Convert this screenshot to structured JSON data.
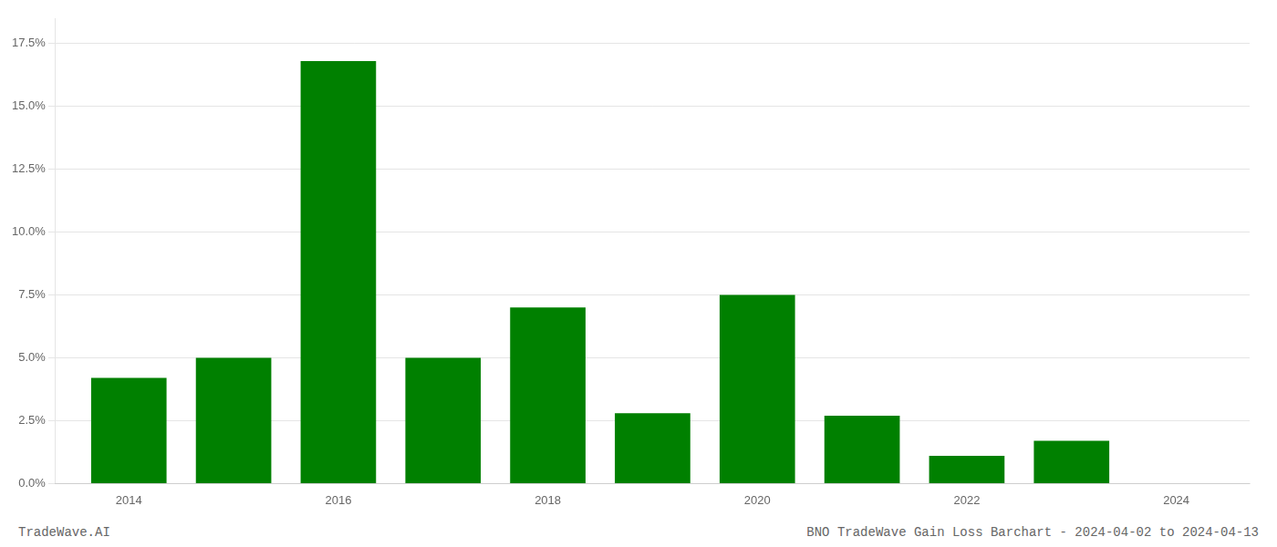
{
  "chart_data": {
    "type": "bar",
    "x": [
      2014,
      2015,
      2016,
      2017,
      2018,
      2019,
      2020,
      2021,
      2022,
      2023,
      2024
    ],
    "values": [
      0.042,
      0.05,
      0.168,
      0.05,
      0.07,
      0.028,
      0.075,
      0.027,
      0.011,
      0.017,
      0.0
    ],
    "color": "#008000",
    "xlim": [
      2013.3,
      2024.7
    ],
    "xticks": [
      2014,
      2016,
      2018,
      2020,
      2022,
      2024
    ],
    "ylim": [
      0,
      0.185
    ],
    "yticks": [
      {
        "value": 0.0,
        "label": "0.0%"
      },
      {
        "value": 0.025,
        "label": "2.5%"
      },
      {
        "value": 0.05,
        "label": "5.0%"
      },
      {
        "value": 0.075,
        "label": "7.5%"
      },
      {
        "value": 0.1,
        "label": "10.0%"
      },
      {
        "value": 0.125,
        "label": "12.5%"
      },
      {
        "value": 0.15,
        "label": "15.0%"
      },
      {
        "value": 0.175,
        "label": "17.5%"
      }
    ],
    "grid": true,
    "annotations": [
      "TradeWave.AI",
      "BNO TradeWave Gain Loss Barchart - 2024-04-02 to 2024-04-13"
    ]
  }
}
